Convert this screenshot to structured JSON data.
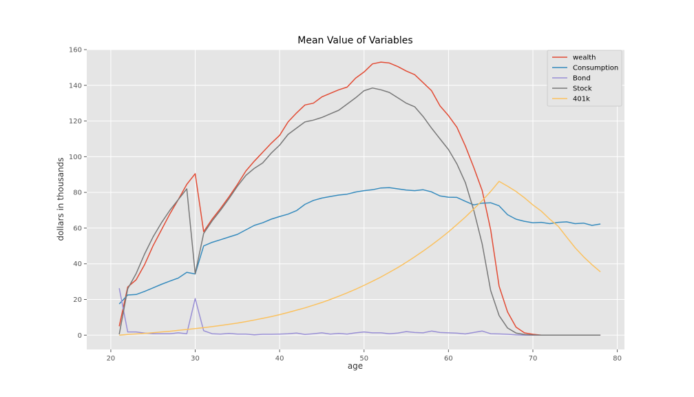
{
  "chart_data": {
    "type": "line",
    "title": "Mean Value of Variables",
    "xlabel": "age",
    "ylabel": "dollars in thousands",
    "xlim": [
      17.15,
      80.85
    ],
    "ylim": [
      -8,
      160
    ],
    "xticks": [
      20,
      30,
      40,
      50,
      60,
      70,
      80
    ],
    "yticks": [
      0,
      20,
      40,
      60,
      80,
      100,
      120,
      140,
      160
    ],
    "grid": true,
    "legend_position": "top-right",
    "x": [
      21,
      22,
      23,
      24,
      25,
      26,
      27,
      28,
      29,
      30,
      31,
      32,
      33,
      34,
      35,
      36,
      37,
      38,
      39,
      40,
      41,
      42,
      43,
      44,
      45,
      46,
      47,
      48,
      49,
      50,
      51,
      52,
      53,
      54,
      55,
      56,
      57,
      58,
      59,
      60,
      61,
      62,
      63,
      64,
      65,
      66,
      67,
      68,
      69,
      70,
      71,
      72,
      73,
      74,
      75,
      76,
      77,
      78
    ],
    "series": [
      {
        "name": "wealth",
        "color": "#E24A33",
        "values": [
          5,
          27,
          31,
          39.5,
          50,
          59,
          68,
          76,
          84.5,
          90.5,
          58,
          65,
          71,
          77.5,
          84.5,
          92,
          97.5,
          102.5,
          107.5,
          112,
          119.5,
          124.5,
          129,
          130,
          133.5,
          135.5,
          137.5,
          139,
          144,
          147.5,
          152,
          153,
          152.5,
          150.5,
          148,
          146,
          141.5,
          137,
          128.5,
          123,
          116.5,
          106,
          94,
          81,
          59,
          27.5,
          13,
          4.5,
          1.3,
          0.5,
          0,
          0,
          0,
          0,
          0,
          0,
          0,
          0
        ]
      },
      {
        "name": "Consumption",
        "color": "#348ABD",
        "values": [
          17.5,
          22.5,
          22.8,
          24.5,
          26.5,
          28.5,
          30.3,
          32,
          35.2,
          34.3,
          50,
          52,
          53.5,
          55,
          56.5,
          59,
          61.5,
          63,
          65,
          66.5,
          67.8,
          69.8,
          73.3,
          75.5,
          76.8,
          77.7,
          78.5,
          79,
          80.2,
          81,
          81.5,
          82.5,
          82.7,
          82,
          81.3,
          81,
          81.5,
          80.3,
          78,
          77.3,
          77.2,
          75,
          73,
          74,
          74.2,
          72.5,
          67.5,
          65,
          63.8,
          63,
          63.2,
          62.5,
          63.2,
          63.5,
          62.5,
          62.8,
          61.5,
          62.3
        ]
      },
      {
        "name": "Bond",
        "color": "#988ED5",
        "values": [
          26.3,
          1.8,
          1.8,
          1.2,
          0.8,
          0.8,
          0.8,
          1.3,
          0.8,
          20.5,
          2.5,
          0.8,
          0.6,
          1,
          0.6,
          0.6,
          0.2,
          0.5,
          0.5,
          0.6,
          0.8,
          1.2,
          0.4,
          0.8,
          1.3,
          0.6,
          1,
          0.6,
          1.3,
          1.8,
          1.3,
          1.3,
          0.8,
          1.2,
          2,
          1.5,
          1.3,
          2.3,
          1.5,
          1.3,
          1.1,
          0.7,
          1.5,
          2.3,
          0.8,
          0.7,
          0.5,
          0.2,
          0,
          0,
          0,
          0,
          0,
          0,
          0,
          0,
          0,
          0
        ]
      },
      {
        "name": "Stock",
        "color": "#777777",
        "values": [
          0.5,
          26,
          34.5,
          45.5,
          55,
          63,
          70,
          76,
          82,
          34.5,
          57,
          64,
          70,
          76.5,
          83.5,
          89.5,
          93.5,
          96.5,
          102,
          106.5,
          112.5,
          116,
          119.5,
          120.5,
          122,
          124,
          126,
          129.5,
          133,
          137,
          138.5,
          137.5,
          136,
          133,
          130,
          128,
          122.5,
          116,
          110,
          104,
          96,
          85.5,
          70,
          51,
          25,
          11,
          4,
          1.2,
          0.4,
          0.1,
          0,
          0,
          0,
          0,
          0,
          0,
          0,
          0
        ]
      },
      {
        "name": "401k",
        "color": "#FBC15E",
        "values": [
          0,
          0.4,
          0.7,
          1,
          1.4,
          1.8,
          2.2,
          2.7,
          3.2,
          3.7,
          4.2,
          4.8,
          5.4,
          6.1,
          6.8,
          7.6,
          8.5,
          9.4,
          10.4,
          11.5,
          12.7,
          14,
          15.3,
          16.8,
          18.3,
          20,
          21.8,
          23.7,
          25.7,
          27.9,
          30.2,
          32.6,
          35.2,
          37.9,
          40.8,
          43.9,
          47.1,
          50.5,
          54.1,
          57.9,
          62,
          66.2,
          70.7,
          75.4,
          80.5,
          86.2,
          83.5,
          80.5,
          77,
          73,
          69.5,
          65,
          61,
          55,
          49,
          44,
          39.5,
          35.5
        ]
      }
    ]
  }
}
